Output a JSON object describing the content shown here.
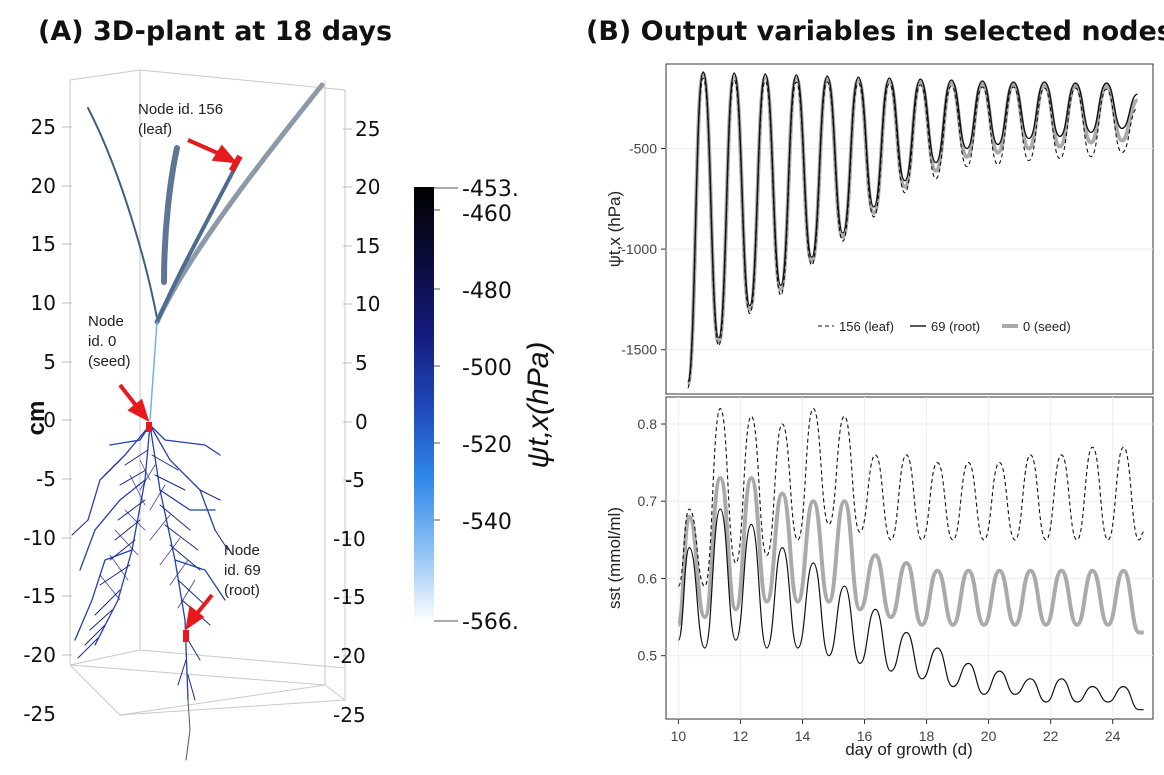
{
  "panel_a": {
    "title": "(A) 3D-plant at 18 days",
    "axis_label": "cm",
    "left_ticks": [
      "25",
      "20",
      "15",
      "10",
      "5",
      "0",
      "-5",
      "-10",
      "-15",
      "-20",
      "-25"
    ],
    "right_ticks": [
      "25",
      "20",
      "15",
      "10",
      "5",
      "0",
      "-5",
      "-10",
      "-15",
      "-20",
      "-25"
    ],
    "annotations": {
      "leaf": [
        "Node id. 156",
        "(leaf)"
      ],
      "seed": [
        "Node",
        "id. 0",
        "(seed)"
      ],
      "root": [
        "Node",
        "id. 69",
        "(root)"
      ]
    },
    "colorbar": {
      "label": "ψt,x(hPa)",
      "ticks": [
        "-453.",
        "-460",
        "-480",
        "-500",
        "-520",
        "-540",
        "-566."
      ],
      "colors": [
        "#000000",
        "#0b0c3a",
        "#131a7a",
        "#1f47b8",
        "#2f86ea",
        "#8cc0f4",
        "#ffffff"
      ]
    },
    "arrow_color": "#e8191c"
  },
  "panel_b": {
    "title": "(B) Output variables in selected nodes"
  },
  "chart_data": [
    {
      "type": "line",
      "ylabel": "ψt,x (hPa)",
      "ylim": [
        -1720,
        -80
      ],
      "yticks": [
        -1500,
        -1000,
        -500
      ],
      "xlim": [
        9.6,
        25.3
      ],
      "legend_placement": "bottom-right",
      "days": [
        10.3,
        10.8,
        11.3,
        11.8,
        12.3,
        12.8,
        13.3,
        13.8,
        14.3,
        14.8,
        15.3,
        15.8,
        16.3,
        16.8,
        17.3,
        17.8,
        18.3,
        18.8,
        19.3,
        19.8,
        20.3,
        20.8,
        21.3,
        21.8,
        22.3,
        22.8,
        23.3,
        23.8,
        24.3,
        24.8
      ],
      "series": [
        {
          "name": "156 (leaf)",
          "style": "dashed",
          "color": "#111111",
          "width": 1.1,
          "values": [
            -1690,
            -150,
            -1480,
            -160,
            -1320,
            -165,
            -1230,
            -170,
            -1080,
            -170,
            -960,
            -175,
            -840,
            -180,
            -720,
            -185,
            -650,
            -190,
            -590,
            -195,
            -580,
            -195,
            -560,
            -200,
            -550,
            -200,
            -540,
            -205,
            -520,
            -300
          ]
        },
        {
          "name": "69 (root)",
          "style": "solid",
          "color": "#111111",
          "width": 1.4,
          "values": [
            -1660,
            -120,
            -1440,
            -125,
            -1280,
            -130,
            -1180,
            -135,
            -1040,
            -140,
            -920,
            -145,
            -790,
            -150,
            -660,
            -155,
            -570,
            -160,
            -500,
            -165,
            -480,
            -170,
            -450,
            -170,
            -440,
            -175,
            -420,
            -175,
            -400,
            -230
          ]
        },
        {
          "name": "0 (seed)",
          "style": "solid",
          "color": "#aaaaaa",
          "width": 4,
          "values": [
            -1670,
            -130,
            -1460,
            -140,
            -1300,
            -145,
            -1200,
            -150,
            -1060,
            -155,
            -940,
            -160,
            -820,
            -165,
            -690,
            -170,
            -610,
            -175,
            -540,
            -180,
            -520,
            -182,
            -500,
            -185,
            -490,
            -187,
            -470,
            -190,
            -460,
            -260
          ]
        }
      ]
    },
    {
      "type": "line",
      "ylabel": "sst (mmol/ml)",
      "xlabel": "day of growth (d)",
      "ylim": [
        0.418,
        0.835
      ],
      "yticks": [
        0.5,
        0.6,
        0.7,
        0.8
      ],
      "xlim": [
        9.6,
        25.3
      ],
      "xticks": [
        10,
        12,
        14,
        16,
        18,
        20,
        22,
        24
      ],
      "days": [
        10.0,
        10.35,
        10.85,
        11.35,
        11.85,
        12.35,
        12.85,
        13.35,
        13.85,
        14.35,
        14.85,
        15.35,
        15.85,
        16.35,
        16.85,
        17.35,
        17.85,
        18.35,
        18.85,
        19.35,
        19.85,
        20.35,
        20.85,
        21.35,
        21.85,
        22.35,
        22.85,
        23.35,
        23.85,
        24.35,
        24.85,
        25.0
      ],
      "series": [
        {
          "name": "156 (leaf)",
          "style": "dashed",
          "color": "#111111",
          "width": 1.1,
          "values": [
            0.59,
            0.69,
            0.59,
            0.82,
            0.62,
            0.81,
            0.63,
            0.8,
            0.65,
            0.82,
            0.67,
            0.81,
            0.66,
            0.76,
            0.65,
            0.76,
            0.65,
            0.75,
            0.65,
            0.75,
            0.65,
            0.75,
            0.65,
            0.76,
            0.65,
            0.76,
            0.65,
            0.77,
            0.65,
            0.77,
            0.65,
            0.66
          ]
        },
        {
          "name": "69 (root)",
          "style": "solid",
          "color": "#111111",
          "width": 1.2,
          "values": [
            0.52,
            0.64,
            0.51,
            0.69,
            0.52,
            0.67,
            0.51,
            0.64,
            0.51,
            0.62,
            0.5,
            0.59,
            0.49,
            0.56,
            0.48,
            0.53,
            0.47,
            0.51,
            0.46,
            0.49,
            0.45,
            0.48,
            0.45,
            0.47,
            0.44,
            0.47,
            0.44,
            0.46,
            0.44,
            0.46,
            0.43,
            0.43
          ]
        },
        {
          "name": "0 (seed)",
          "style": "solid",
          "color": "#aaaaaa",
          "width": 4,
          "values": [
            0.54,
            0.68,
            0.55,
            0.73,
            0.56,
            0.73,
            0.57,
            0.71,
            0.57,
            0.7,
            0.57,
            0.7,
            0.56,
            0.63,
            0.55,
            0.62,
            0.54,
            0.61,
            0.54,
            0.61,
            0.54,
            0.61,
            0.54,
            0.61,
            0.54,
            0.61,
            0.54,
            0.61,
            0.54,
            0.61,
            0.53,
            0.53
          ]
        }
      ]
    }
  ]
}
